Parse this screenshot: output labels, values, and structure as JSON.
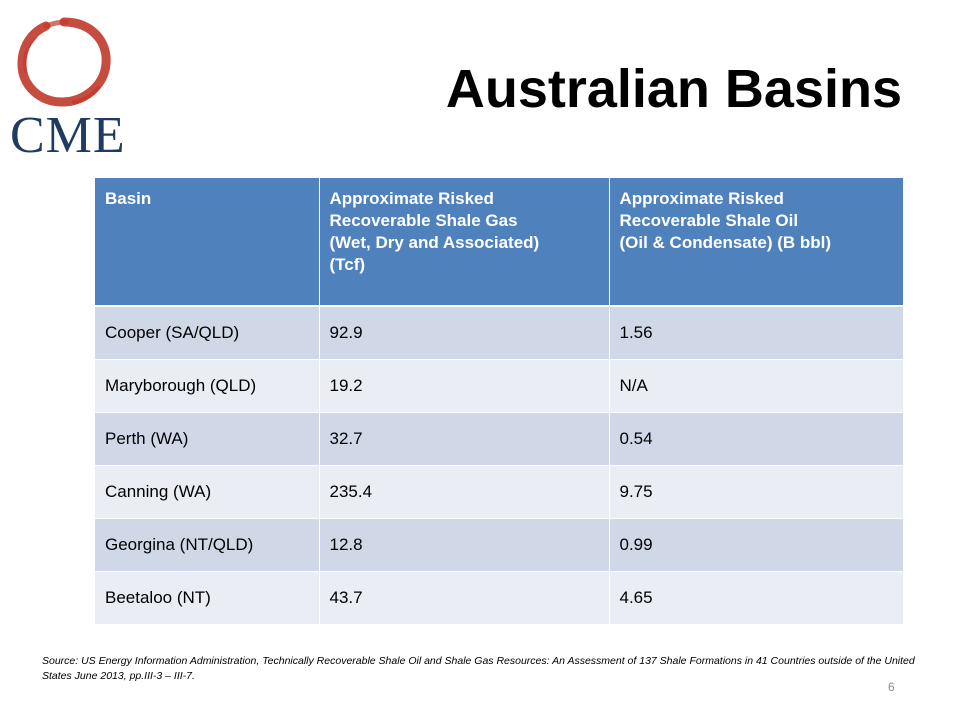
{
  "slide": {
    "title": "Australian Basins",
    "page_number": "6"
  },
  "logo": {
    "text": "CME",
    "ring_color": "#c0392b",
    "text_color": "#1f3a63"
  },
  "table": {
    "headers": [
      [
        "Basin"
      ],
      [
        "Approximate Risked",
        "Recoverable Shale Gas",
        "(Wet, Dry and Associated)",
        "(Tcf)"
      ],
      [
        "Approximate Risked",
        "Recoverable Shale Oil",
        "(Oil & Condensate) (B bbl)"
      ]
    ],
    "rows": [
      [
        "Cooper (SA/QLD)",
        "92.9",
        "1.56"
      ],
      [
        "Maryborough (QLD)",
        "19.2",
        "N/A"
      ],
      [
        "Perth (WA)",
        "32.7",
        "0.54"
      ],
      [
        "Canning (WA)",
        "235.4",
        "9.75"
      ],
      [
        "Georgina (NT/QLD)",
        "12.8",
        "0.99"
      ],
      [
        "Beetaloo (NT)",
        "43.7",
        "4.65"
      ]
    ],
    "header_color": "#4f81bd",
    "row_color_odd": "#d0d8e8",
    "row_color_even": "#e9edf4"
  },
  "footnote": {
    "source": "Source: US Energy Information Administration, Technically Recoverable Shale Oil and Shale Gas Resources: An Assessment of 137 Shale Formations in 41 Countries outside of the United States June 2013, pp.III-3 – III-7."
  }
}
